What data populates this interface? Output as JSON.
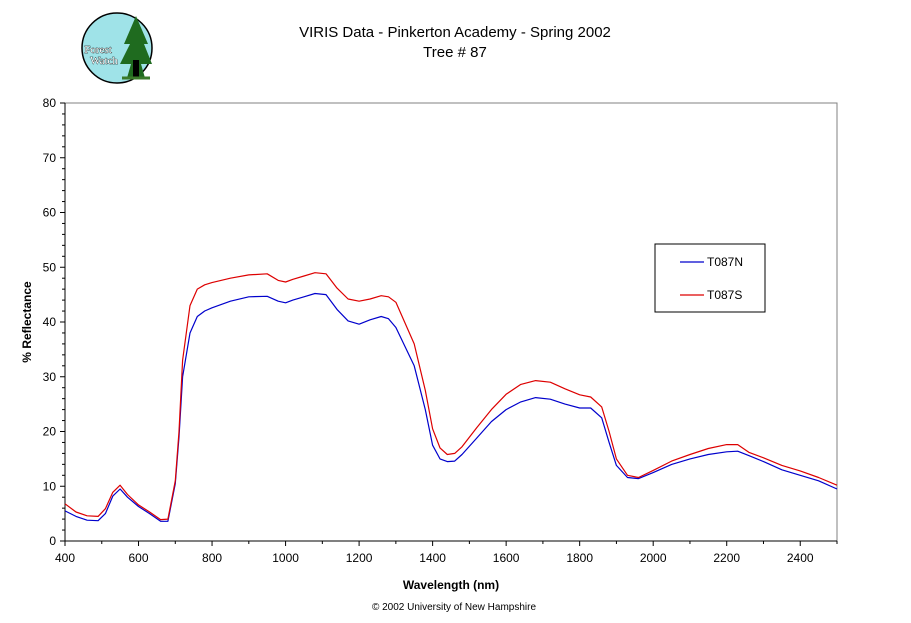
{
  "logo": {
    "line1": "Forest",
    "line2": "Watch"
  },
  "footer": "© 2002 University of New Hampshire",
  "chart_data": {
    "type": "line",
    "title": "VIRIS Data - Pinkerton Academy - Spring 2002",
    "subtitle": "Tree # 87",
    "xlabel": "Wavelength (nm)",
    "ylabel": "% Reflectance",
    "xlim": [
      400,
      2500
    ],
    "ylim": [
      0,
      80
    ],
    "x_ticks": [
      400,
      600,
      800,
      1000,
      1200,
      1400,
      1600,
      1800,
      2000,
      2200,
      2400
    ],
    "y_ticks": [
      0,
      10,
      20,
      30,
      40,
      50,
      60,
      70,
      80
    ],
    "grid": false,
    "legend_position": "right",
    "series": [
      {
        "name": "T087N",
        "color": "#0000cc",
        "x": [
          400,
          430,
          460,
          490,
          510,
          530,
          550,
          570,
          600,
          630,
          660,
          680,
          700,
          710,
          720,
          740,
          760,
          780,
          800,
          850,
          900,
          950,
          980,
          1000,
          1020,
          1050,
          1080,
          1110,
          1140,
          1170,
          1200,
          1230,
          1260,
          1280,
          1300,
          1350,
          1380,
          1400,
          1420,
          1440,
          1460,
          1480,
          1520,
          1560,
          1600,
          1640,
          1680,
          1720,
          1760,
          1800,
          1830,
          1860,
          1880,
          1900,
          1930,
          1960,
          2000,
          2050,
          2100,
          2150,
          2200,
          2230,
          2260,
          2300,
          2350,
          2400,
          2450,
          2500
        ],
        "y": [
          5.5,
          4.5,
          3.8,
          3.7,
          5.0,
          8.2,
          9.5,
          8.0,
          6.3,
          5.0,
          3.6,
          3.6,
          10.5,
          19.0,
          30.0,
          38.0,
          41.0,
          42.0,
          42.6,
          43.8,
          44.6,
          44.7,
          43.8,
          43.5,
          44.0,
          44.6,
          45.2,
          45.0,
          42.3,
          40.2,
          39.6,
          40.4,
          41.0,
          40.6,
          39.0,
          32.0,
          24.0,
          17.5,
          15.0,
          14.5,
          14.6,
          15.8,
          18.8,
          21.8,
          24.0,
          25.4,
          26.2,
          25.9,
          25.0,
          24.3,
          24.3,
          22.5,
          18.0,
          13.8,
          11.6,
          11.4,
          12.5,
          14.0,
          15.0,
          15.8,
          16.3,
          16.4,
          15.6,
          14.5,
          13.0,
          12.0,
          11.0,
          9.5
        ]
      },
      {
        "name": "T087S",
        "color": "#dd0000",
        "x": [
          400,
          430,
          460,
          490,
          510,
          530,
          550,
          570,
          600,
          630,
          660,
          680,
          700,
          710,
          720,
          740,
          760,
          780,
          800,
          850,
          900,
          950,
          980,
          1000,
          1020,
          1050,
          1080,
          1110,
          1140,
          1170,
          1200,
          1230,
          1260,
          1280,
          1300,
          1350,
          1380,
          1400,
          1420,
          1440,
          1460,
          1480,
          1520,
          1560,
          1600,
          1640,
          1680,
          1720,
          1760,
          1800,
          1830,
          1860,
          1880,
          1900,
          1930,
          1960,
          2000,
          2050,
          2100,
          2150,
          2200,
          2230,
          2260,
          2300,
          2350,
          2400,
          2450,
          2500
        ],
        "y": [
          6.8,
          5.3,
          4.6,
          4.5,
          5.9,
          8.9,
          10.2,
          8.5,
          6.6,
          5.3,
          3.9,
          4.0,
          11.0,
          20.0,
          33.0,
          43.0,
          46.0,
          46.8,
          47.2,
          48.0,
          48.6,
          48.8,
          47.6,
          47.3,
          47.8,
          48.4,
          49.0,
          48.8,
          46.2,
          44.2,
          43.8,
          44.2,
          44.8,
          44.6,
          43.6,
          36.0,
          27.5,
          20.5,
          17.0,
          15.8,
          16.0,
          17.2,
          20.7,
          24.0,
          26.8,
          28.6,
          29.3,
          29.0,
          27.8,
          26.7,
          26.3,
          24.5,
          20.0,
          15.0,
          12.0,
          11.6,
          12.9,
          14.6,
          15.8,
          16.9,
          17.6,
          17.6,
          16.2,
          15.2,
          13.8,
          12.8,
          11.6,
          10.2
        ]
      }
    ]
  }
}
